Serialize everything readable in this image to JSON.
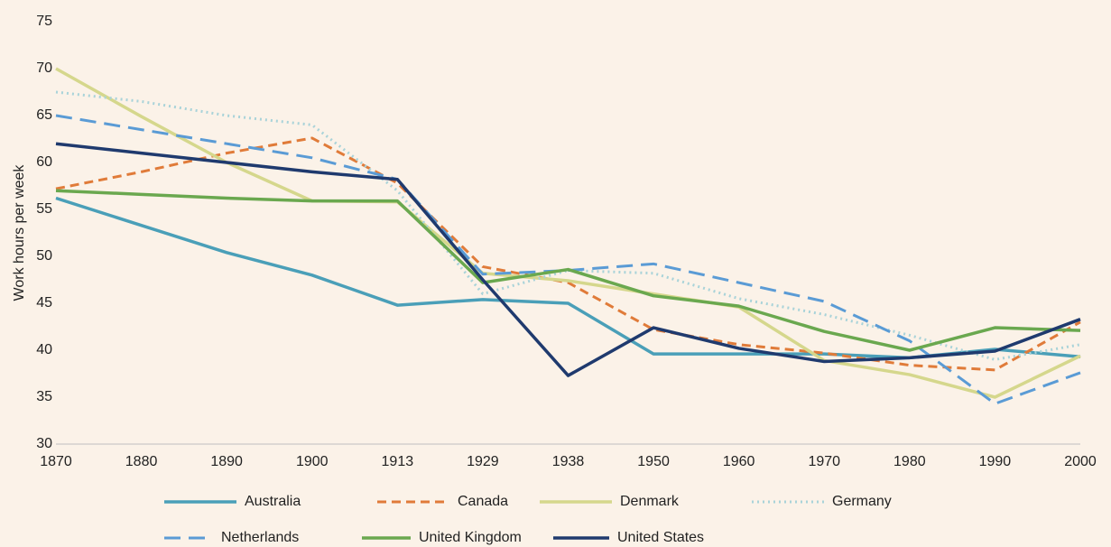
{
  "chart_data": {
    "type": "line",
    "y_label": "Work hours per week",
    "categories": [
      "1870",
      "1880",
      "1890",
      "1900",
      "1913",
      "1929",
      "1938",
      "1950",
      "1960",
      "1970",
      "1980",
      "1990",
      "2000"
    ],
    "ylim": [
      30,
      75
    ],
    "yticks": [
      30,
      35,
      40,
      45,
      50,
      55,
      60,
      65,
      70,
      75
    ],
    "grid": false,
    "legend": "bottom",
    "series": [
      {
        "name": "Australia",
        "color": "#4a9fb8",
        "dash": "solid",
        "values": [
          56.2,
          53.3,
          50.4,
          48,
          44.8,
          45.4,
          45,
          39.6,
          39.6,
          39.6,
          39.2,
          40.1,
          39.3
        ]
      },
      {
        "name": "Canada",
        "color": "#e07b39",
        "dash": "dashed",
        "values": [
          57.2,
          59,
          61,
          62.6,
          57.8,
          48.9,
          47.2,
          42.2,
          40.6,
          39.7,
          38.4,
          37.9,
          43
        ]
      },
      {
        "name": "Denmark",
        "color": "#d5d78c",
        "dash": "solid",
        "values": [
          70,
          64.9,
          60,
          55.9,
          55.8,
          48.2,
          47.4,
          46,
          44.6,
          38.9,
          37.4,
          35,
          39.4
        ]
      },
      {
        "name": "Germany",
        "color": "#a9d3d9",
        "dash": "dotted",
        "values": [
          67.5,
          66.5,
          65,
          64,
          57,
          46,
          48.5,
          48.2,
          45.5,
          43.8,
          41.6,
          39,
          40.6
        ]
      },
      {
        "name": "Netherlands",
        "color": "#5a9bd5",
        "dash": "longdash",
        "values": [
          65,
          63.5,
          62,
          60.5,
          58.2,
          48.1,
          48.5,
          49.2,
          47.2,
          45.2,
          41,
          34.3,
          37.6
        ]
      },
      {
        "name": "United Kingdom",
        "color": "#6aa84f",
        "dash": "solid",
        "values": [
          57,
          56.6,
          56.2,
          55.9,
          55.9,
          47.2,
          48.6,
          45.8,
          44.7,
          42,
          40,
          42.4,
          42.1
        ]
      },
      {
        "name": "United States",
        "color": "#1f3a6e",
        "dash": "solid",
        "values": [
          62,
          61,
          60,
          59,
          58.2,
          47.5,
          37.3,
          42.4,
          40.2,
          38.8,
          39.2,
          39.9,
          43.3
        ]
      }
    ]
  }
}
